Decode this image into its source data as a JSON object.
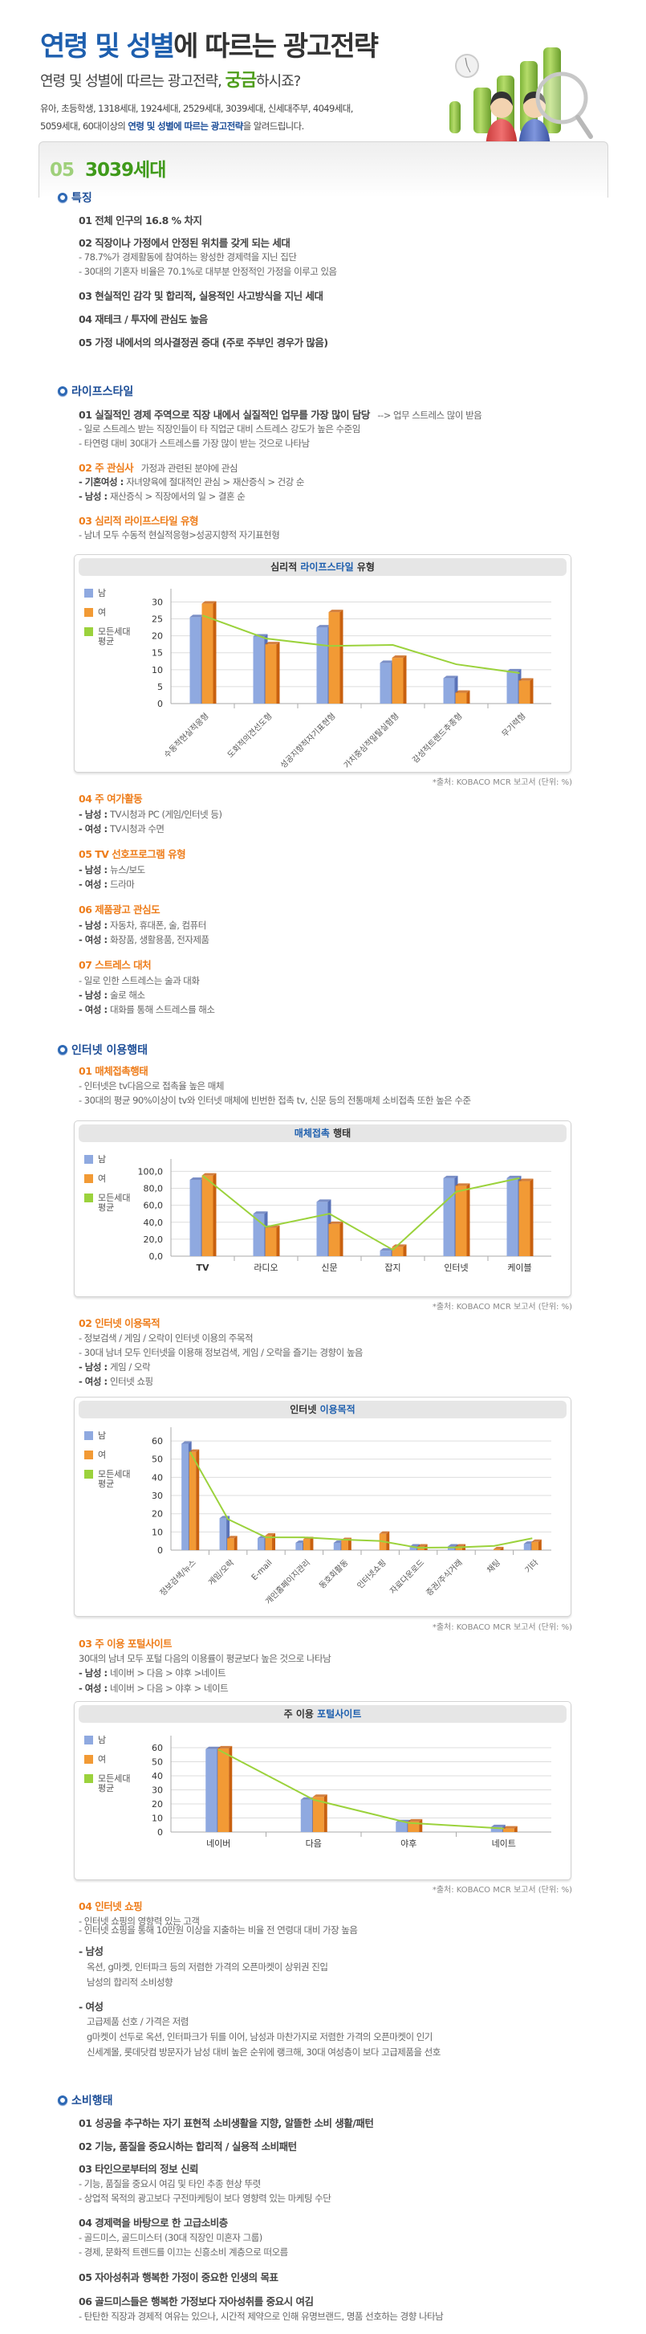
{
  "header": {
    "title_blue": "연령 및 성별",
    "title_rest": "에 따르는 광고전략",
    "subtitle_pre": "연령 및 성별에 따르는 광고전략, ",
    "subtitle_green": "궁금",
    "subtitle_post": "하시죠?",
    "desc_line1": "유아, 초등학생, 1318세대, 1924세대, 2529세대, 3039세대, 신세대주부, 4049세대,",
    "desc_line2_pre": "5059세대, 60대이상의 ",
    "desc_line2_hl": "연령 및 성별에 따르는 광고전략",
    "desc_line2_post": "을 알려드립니다."
  },
  "generation": {
    "num": "05",
    "title": "3039세대"
  },
  "sections": {
    "features": {
      "title": "특징",
      "items": [
        {
          "h": "01 전체 인구의 16.8 % 차지"
        },
        {
          "h": "02 직장이나 가정에서 안정된 위치를 갖게 되는 세대",
          "subs": [
            "- 78.7%가 경제활동에 참여하는 왕성한 경제력을 지닌 집단",
            "- 30대의 기혼자 비율은 70.1%로 대부분 안정적인 가정을 이루고 있음"
          ]
        },
        {
          "h": "03 현실적인 감각 및 합리적, 실용적인 사고방식을 지닌 세대"
        },
        {
          "h": "04 재테크 / 투자에 관심도 높음"
        },
        {
          "h": "05 가정 내에서의 의사결정권 증대 (주로 주부인 경우가 많음)"
        }
      ]
    },
    "lifestyle": {
      "title": "라이프스타일",
      "i1_h": "01 실질적인 경제 주역으로 직장 내에서 실질적인 업무를 가장 많이 담당",
      "i1_tail": "--> 업무 스트레스 많이 받음",
      "i1_subs": [
        "- 일로 스트레스 받는 직장인들이 타 직업군 대비 스트레스 강도가 높은 수준임",
        "- 타연령 대비 30대가 스트레스를 가장 많이 받는 것으로 나타남"
      ],
      "i2_h": "02 주 관심사",
      "i2_tail": "가정과 관련된 분야에 관심",
      "i2_subs": [
        {
          "label": "- 기혼여성 : ",
          "text": "자녀양육에 절대적인 관심 > 재산증식 > 건강 순"
        },
        {
          "label": "- 남성 : ",
          "text": "재산증식 > 직장에서의 일 > 결혼 순"
        }
      ],
      "i3_h": "03 심리적 라이프스타일 유형",
      "i3_sub": "- 남녀 모두 수동적 현실적응형>성공지향적 자기표현형",
      "i4_h": "04 주 여가활동",
      "i4_subs": [
        {
          "label": "- 남성 : ",
          "text": "TV시청과 PC (게임/인터넷 등)"
        },
        {
          "label": "- 여성 : ",
          "text": "TV시청과 수면"
        }
      ],
      "i5_h": "05 TV 선호프로그램 유형",
      "i5_subs": [
        {
          "label": "- 남성 : ",
          "text": "뉴스/보도"
        },
        {
          "label": "- 여성 : ",
          "text": "드라마"
        }
      ],
      "i6_h": "06 제품광고 관심도",
      "i6_subs": [
        {
          "label": "- 남성 : ",
          "text": "자동차, 휴대폰, 술, 컴퓨터"
        },
        {
          "label": "- 여성 : ",
          "text": "화장품, 생활용품, 전자제품"
        }
      ],
      "i7_h": "07 스트레스 대처",
      "i7_sub0": "- 일로 인한 스트레스는 술과 대화",
      "i7_subs": [
        {
          "label": "- 남성 : ",
          "text": "술로 해소"
        },
        {
          "label": "- 여성 : ",
          "text": "대화를 통해 스트레스를 해소"
        }
      ]
    },
    "internet": {
      "title": "인터넷 이용행태",
      "i1_h": "01 매체접촉행태",
      "i1_subs": [
        "- 인터넷은 tv다음으로 접촉율 높은 매체",
        "- 30대의 평균 90%이상이 tv와 인터넷 매체에 빈번한 접촉 tv, 신문 등의 전통매체 소비접촉 또한 높은 수준"
      ],
      "i2_h": "02 인터넷 이용목적",
      "i2_subs": [
        "- 정보검색 / 게임 / 오락이 인터넷 이용의 주목적",
        "- 30대 남녀  모두 인터넷을 이용해 정보검색, 게임 / 오락을 즐기는 경향이 높음"
      ],
      "i2_gender": [
        {
          "label": "- 남성 : ",
          "text": "게임 / 오락"
        },
        {
          "label": "- 여성 : ",
          "text": "인터넷 쇼핑"
        }
      ],
      "i3_h": "03 주 이용 포털사이트",
      "i3_sub": "30대의 남녀 모두 포털 다음의 이용률이 평균보다 높은 것으로 나타남",
      "i3_gender": [
        {
          "label": "- 남성 : ",
          "text": "네이버 > 다음 > 야후 >네이트"
        },
        {
          "label": "- 여성 : ",
          "text": "네이버 > 다음 > 야후 > 네이트"
        }
      ],
      "i4_h": "04 인터넷 쇼핑",
      "i4_subs": [
        "- 인터넷 쇼핑의 영향력 있는 고객",
        "- 인터넷 쇼핑을 통해 10만원 이상을 지출하는 비율 전 연령대 대비 가장 높음"
      ],
      "i4_male_label": "- 남성",
      "i4_male": [
        "옥션, g마켓, 인터파크 등의 저렴한 가격의 오픈마켓이 상위권 진입",
        "남성의 합리적 소비성향"
      ],
      "i4_female_label": "- 여성",
      "i4_female": [
        "고급제품 선호 / 가격은 저렴",
        "g마켓이 선두로 옥션, 인터파크가 뒤를 이어, 남성과 마찬가지로 저렴한 가격의 오픈마켓이 인기",
        "신세계몰, 롯데닷컴 방문자가 남성 대비 높은 순위에 랭크해, 30대 여성층이 보다 고급제품을 선호"
      ]
    },
    "consumption": {
      "title": "소비행태",
      "items": [
        {
          "h": "01 성공을 추구하는 자기 표현적 소비생활을 지향, 알뜰한 소비 생활/패턴"
        },
        {
          "h": "02 기능, 품질을 중요시하는 합리적 / 실용적 소비패턴"
        },
        {
          "h": "03 타인으로부터의 정보 신뢰",
          "subs": [
            "- 기능, 품질을 중요시 여김 및 타인 추종 현상 뚜렷",
            "- 상업적 목적의 광고보다 구전마케팅이 보다 영향력 있는 마케팅 수단"
          ]
        },
        {
          "h": "04 경제력을 바탕으로 한 고급소비층",
          "subs": [
            "- 골드미스, 골드미스터 (30대 직장인 미혼자 그룹)",
            "- 경제, 문화적 트렌드를 이끄는 신흥소비 계층으로 떠오름"
          ]
        },
        {
          "h": "05 자아성취과 행복한 가정이 중요한 인생의 목표"
        },
        {
          "h": "06 골드미스들은 행복한 가정보다 자아성취를 중요시 여김",
          "subs": [
            "- 탄탄한 직장과 경제적 여유는 있으나, 시간적 제약으로 인해 유명브랜드, 명품 선호하는 경향 나타남"
          ]
        }
      ]
    }
  },
  "legend": {
    "male": "남",
    "female": "여",
    "avg_line1": "모든세대",
    "avg_line2": "평균"
  },
  "source_note": "*출처: KOBACO MCR 보고서 (단위: %)",
  "colors": {
    "male": "#8fa9e0",
    "female": "#f29a35",
    "avg": "#9bd23c",
    "title_blue": "#1e5fae",
    "orange": "#ee7d1b",
    "green": "#3f9a1a"
  },
  "chart_data": [
    {
      "type": "bar",
      "title": "심리적 라이프스타일 유형",
      "title_plain": "심리적 ",
      "title_blue": "라이프스타일",
      "title_tail": " 유형",
      "categories": [
        "수동적현실적응형",
        "도회적의견선도형",
        "성공지향적자기표현형",
        "가치중심적일탈실험형",
        "감성적트렌드추종형",
        "무기력형"
      ],
      "series": [
        {
          "name": "남",
          "values": [
            25.5,
            19.8,
            22.5,
            12.0,
            7.5,
            9.5
          ]
        },
        {
          "name": "여",
          "values": [
            29.5,
            17.5,
            27.0,
            13.5,
            3.2,
            6.8
          ]
        },
        {
          "name": "모든세대 평균",
          "kind": "line",
          "values": [
            26.0,
            19.2,
            17.0,
            17.3,
            11.6,
            9.0
          ]
        }
      ],
      "yticks": [
        "0",
        "5",
        "10",
        "15",
        "20",
        "25",
        "30"
      ],
      "ylim": [
        0,
        32
      ],
      "xlabel": "",
      "ylabel": "",
      "grid": true,
      "legend_position": "left"
    },
    {
      "type": "bar",
      "title": "매체접촉 행태",
      "title_plain": "",
      "title_blue": "매체접촉",
      "title_tail": " 행태",
      "categories": [
        "TV",
        "라디오",
        "신문",
        "잡지",
        "인터넷",
        "케이블"
      ],
      "series": [
        {
          "name": "남",
          "values": [
            90.0,
            50.0,
            64.0,
            6.5,
            92.0,
            92.0
          ]
        },
        {
          "name": "여",
          "values": [
            95.0,
            33.5,
            38.0,
            11.0,
            83.0,
            88.5
          ]
        },
        {
          "name": "모든세대 평균",
          "kind": "line",
          "values": [
            95.0,
            34.5,
            50.0,
            7.5,
            76.0,
            92.0
          ]
        }
      ],
      "yticks": [
        "0,0",
        "20,0",
        "40,0",
        "60,0",
        "80,0",
        "100,0"
      ],
      "ylim": [
        0,
        107
      ],
      "xlabel": "",
      "ylabel": "",
      "grid": true,
      "legend_position": "left"
    },
    {
      "type": "bar",
      "title": "인터넷 이용목적",
      "title_plain": "인터넷 ",
      "title_blue": "이용목적",
      "title_tail": "",
      "categories": [
        "정보검색/뉴스",
        "게임/오락",
        "E-mail",
        "개인홈페이지관리",
        "동호회활동",
        "인터넷쇼핑",
        "자료다운로드",
        "증권/주식거래",
        "채팅",
        "기타"
      ],
      "series": [
        {
          "name": "남",
          "values": [
            58.5,
            17.5,
            6.5,
            4.0,
            4.0,
            0,
            2.0,
            2.0,
            0,
            3.5
          ]
        },
        {
          "name": "여",
          "values": [
            54.0,
            6.5,
            8.0,
            6.0,
            5.5,
            9.0,
            2.0,
            2.0,
            0.5,
            4.5
          ]
        },
        {
          "name": "모든세대 평균",
          "kind": "line",
          "values": [
            54.0,
            17.0,
            7.0,
            7.0,
            5.8,
            5.0,
            1.3,
            1.5,
            2.3,
            6.5
          ]
        }
      ],
      "yticks": [
        "0",
        "10",
        "20",
        "30",
        "40",
        "50",
        "60"
      ],
      "ylim": [
        0,
        64
      ],
      "xlabel": "",
      "ylabel": "",
      "grid": true,
      "legend_position": "left"
    },
    {
      "type": "bar",
      "title": "주 이용 포털사이트",
      "title_plain": "주 이용 ",
      "title_blue": "포털사이트",
      "title_tail": "",
      "categories": [
        "네이버",
        "다음",
        "야후",
        "네이트"
      ],
      "series": [
        {
          "name": "남",
          "values": [
            59.0,
            23.0,
            7.0,
            3.5
          ]
        },
        {
          "name": "여",
          "values": [
            59.5,
            25.0,
            7.5,
            2.5
          ]
        },
        {
          "name": "모든세대 평균",
          "kind": "line",
          "values": [
            58.5,
            23.0,
            6.5,
            2.5
          ]
        }
      ],
      "yticks": [
        "0",
        "10",
        "20",
        "30",
        "40",
        "50",
        "60"
      ],
      "ylim": [
        0,
        64
      ],
      "xlabel": "",
      "ylabel": "",
      "grid": true,
      "legend_position": "left"
    }
  ]
}
